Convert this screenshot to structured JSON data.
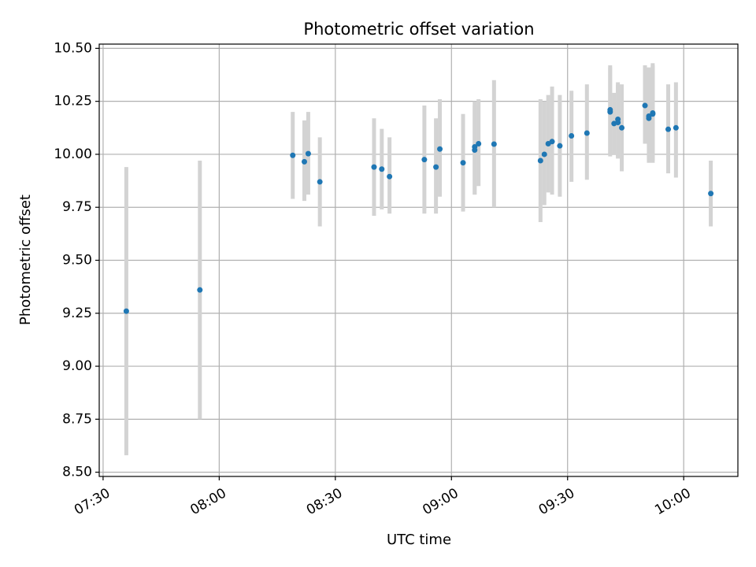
{
  "chart_data": {
    "type": "scatter",
    "title": "Photometric offset variation",
    "xlabel": "UTC time",
    "ylabel": "Photometric offset",
    "grid": true,
    "xlim": [
      "07:29",
      "10:14"
    ],
    "ylim": [
      8.48,
      10.52
    ],
    "x_ticks": [
      "07:30",
      "08:00",
      "08:30",
      "09:00",
      "09:30",
      "10:00"
    ],
    "y_ticks": [
      "8.50",
      "8.75",
      "9.00",
      "9.25",
      "9.50",
      "9.75",
      "10.00",
      "10.25",
      "10.50"
    ],
    "colors": {
      "points": "#1f77b4",
      "error_bars": "#d3d3d3",
      "grid": "#b0b0b0"
    },
    "series": [
      {
        "x": [
          "07:36",
          "07:55",
          "08:19",
          "08:22",
          "08:23",
          "08:26",
          "08:40",
          "08:42",
          "08:44",
          "08:53",
          "08:56",
          "08:57",
          "09:03",
          "09:06",
          "09:06",
          "09:07",
          "09:11",
          "09:23",
          "09:24",
          "09:25",
          "09:26",
          "09:28",
          "09:31",
          "09:35",
          "09:41",
          "09:41",
          "09:42",
          "09:43",
          "09:43",
          "09:44",
          "09:50",
          "09:51",
          "09:51",
          "09:52",
          "09:52",
          "09:56",
          "09:58",
          "10:07"
        ],
        "y": [
          9.26,
          9.36,
          9.995,
          9.965,
          10.003,
          9.87,
          9.94,
          9.93,
          9.895,
          9.975,
          9.94,
          10.025,
          9.96,
          10.02,
          10.035,
          10.05,
          10.048,
          9.97,
          10.0,
          10.05,
          10.06,
          10.04,
          10.087,
          10.1,
          10.21,
          10.2,
          10.145,
          10.165,
          10.15,
          10.125,
          10.23,
          10.18,
          10.17,
          10.195,
          10.19,
          10.118,
          10.125,
          9.815
        ],
        "y_low": [
          8.58,
          8.75,
          9.79,
          9.78,
          9.81,
          9.66,
          9.71,
          9.74,
          9.72,
          9.72,
          9.72,
          9.8,
          9.73,
          9.81,
          9.81,
          9.85,
          9.75,
          9.68,
          9.76,
          9.82,
          9.81,
          9.8,
          9.87,
          9.88,
          10.0,
          9.99,
          10.0,
          9.99,
          9.98,
          9.92,
          10.05,
          9.97,
          9.96,
          9.96,
          9.97,
          9.91,
          9.89,
          9.66
        ],
        "y_high": [
          9.94,
          9.97,
          10.2,
          10.16,
          10.2,
          10.08,
          10.17,
          10.12,
          10.08,
          10.23,
          10.17,
          10.26,
          10.19,
          10.23,
          10.25,
          10.26,
          10.35,
          10.26,
          10.25,
          10.28,
          10.32,
          10.28,
          10.3,
          10.33,
          10.42,
          10.41,
          10.29,
          10.34,
          10.33,
          10.33,
          10.42,
          10.41,
          10.4,
          10.42,
          10.43,
          10.33,
          10.34,
          9.97
        ]
      }
    ]
  }
}
